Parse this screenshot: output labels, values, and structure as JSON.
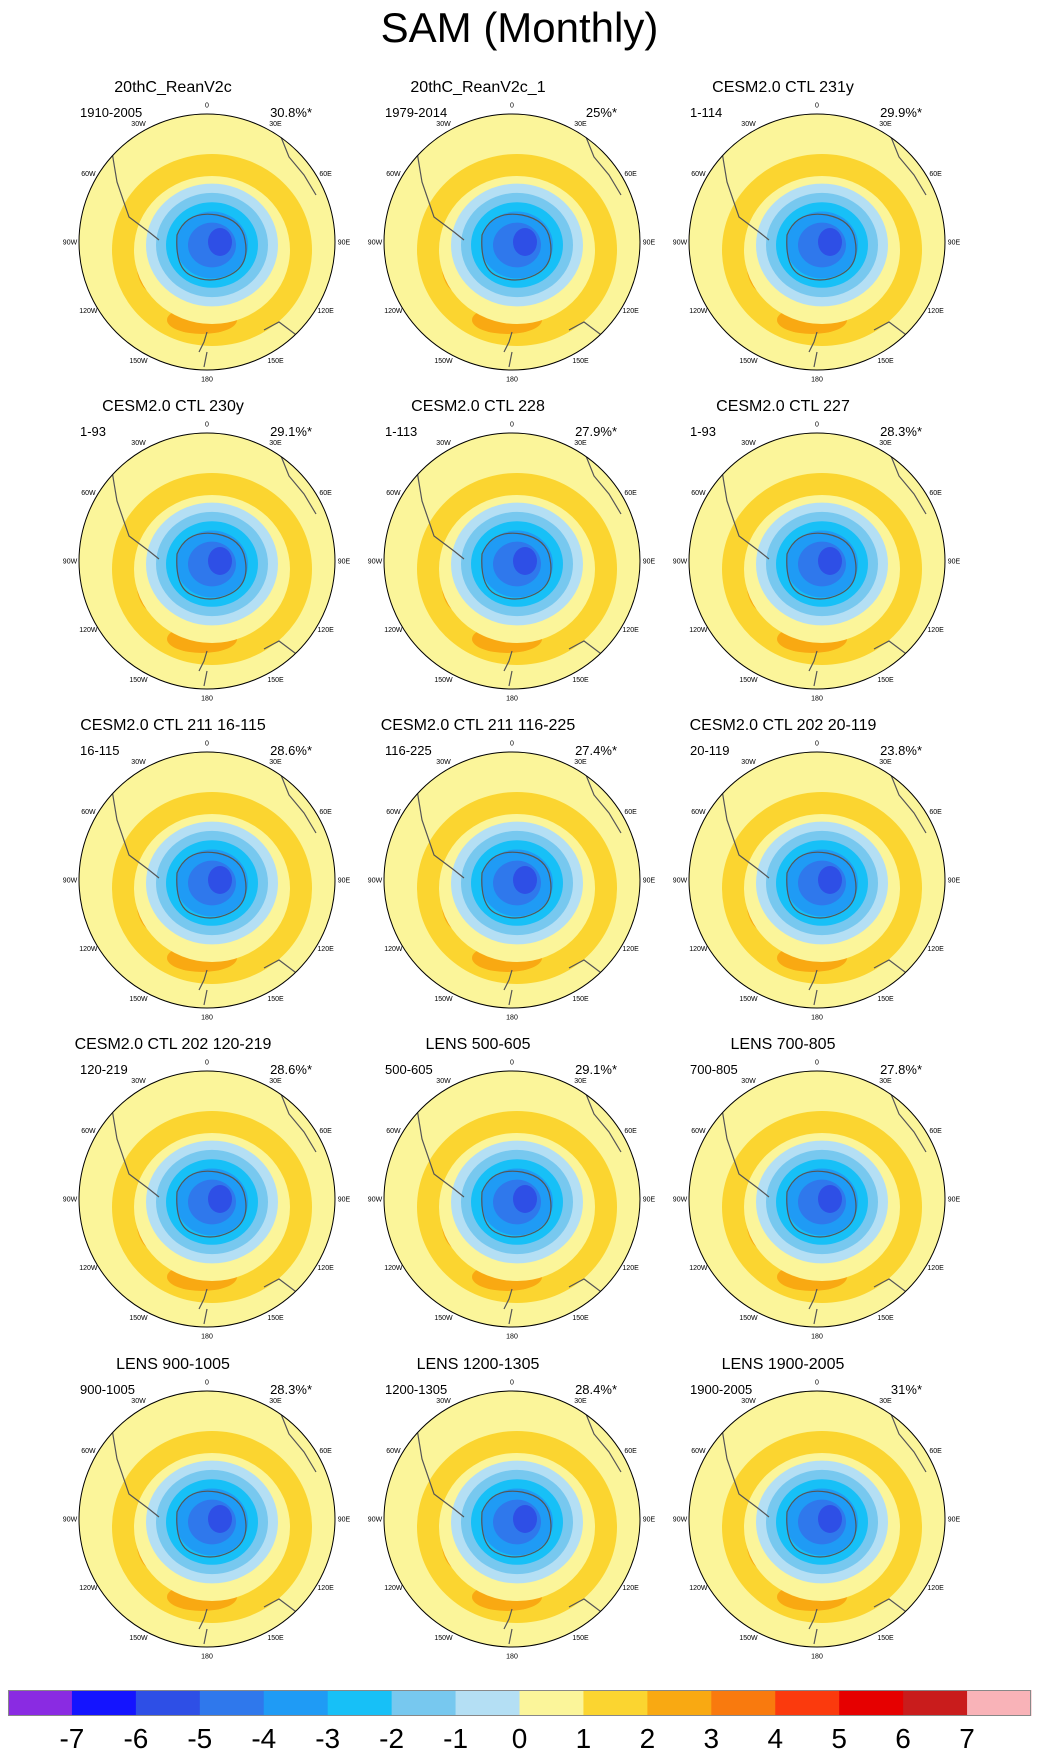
{
  "figure": {
    "title": "SAM (Monthly)",
    "lon_labels": [
      "0",
      "30E",
      "60E",
      "90E",
      "120E",
      "150E",
      "180",
      "150W",
      "120W",
      "90W",
      "60W",
      "30W"
    ]
  },
  "panels": [
    {
      "title": "20thC_ReanV2c",
      "period": "1910-2005",
      "variance": "30.8%*"
    },
    {
      "title": "20thC_ReanV2c_1",
      "period": "1979-2014",
      "variance": "25%*"
    },
    {
      "title": "CESM2.0 CTL 231y",
      "period": "1-114",
      "variance": "29.9%*"
    },
    {
      "title": "CESM2.0 CTL 230y",
      "period": "1-93",
      "variance": "29.1%*"
    },
    {
      "title": "CESM2.0 CTL 228",
      "period": "1-113",
      "variance": "27.9%*"
    },
    {
      "title": "CESM2.0 CTL 227",
      "period": "1-93",
      "variance": "28.3%*"
    },
    {
      "title": "CESM2.0 CTL 211 16-115",
      "period": "16-115",
      "variance": "28.6%*"
    },
    {
      "title": "CESM2.0 CTL 211 116-225",
      "period": "116-225",
      "variance": "27.4%*"
    },
    {
      "title": "CESM2.0 CTL 202 20-119",
      "period": "20-119",
      "variance": "23.8%*"
    },
    {
      "title": "CESM2.0 CTL 202 120-219",
      "period": "120-219",
      "variance": "28.6%*"
    },
    {
      "title": "LENS 500-605",
      "period": "500-605",
      "variance": "29.1%*"
    },
    {
      "title": "LENS 700-805",
      "period": "700-805",
      "variance": "27.8%*"
    },
    {
      "title": "LENS 900-1005",
      "period": "900-1005",
      "variance": "28.3%*"
    },
    {
      "title": "LENS 1200-1305",
      "period": "1200-1305",
      "variance": "28.4%*"
    },
    {
      "title": "LENS 1900-2005",
      "period": "1900-2005",
      "variance": "31%*"
    }
  ],
  "colorbar": {
    "labels": [
      "-7",
      "-6",
      "-5",
      "-4",
      "-3",
      "-2",
      "-1",
      "0",
      "1",
      "2",
      "3",
      "4",
      "5",
      "6",
      "7"
    ],
    "colors": [
      "#8a2be2",
      "#1414ff",
      "#2e4fe6",
      "#2f78ec",
      "#1f9bf5",
      "#17c0f7",
      "#77c8ef",
      "#b4dff4",
      "#fbf59a",
      "#fbd530",
      "#f9a912",
      "#f97a0e",
      "#fb3a0d",
      "#e60000",
      "#c91c1c",
      "#f9b3b8"
    ]
  },
  "map_style": {
    "background": "#fbf59a",
    "land_outline": "#555555"
  }
}
